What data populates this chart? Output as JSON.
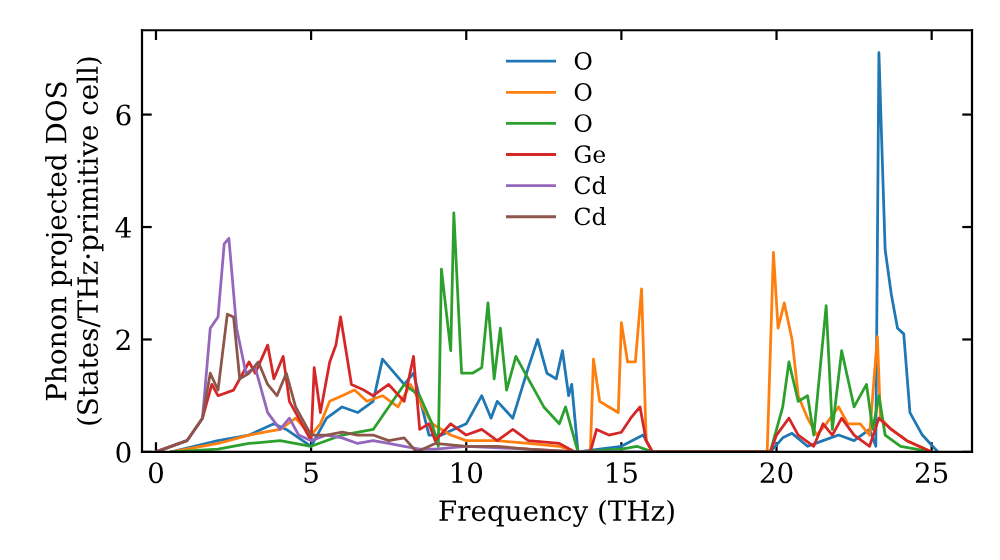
{
  "chart_data": {
    "type": "line",
    "xlabel": "Frequency (THz)",
    "ylabel": "Phonon projected DOS\n(States/THz·primitive cell)",
    "xlim": [
      -0.45,
      26.3
    ],
    "ylim": [
      0,
      7.5
    ],
    "xticks": [
      0,
      5,
      10,
      15,
      20,
      25
    ],
    "yticks": [
      0,
      2,
      4,
      6
    ],
    "grid": false,
    "legend": "top",
    "marker": "none",
    "line_style": "solid",
    "series": [
      {
        "name": "O",
        "color": "#1f77b4",
        "x": [
          0.5,
          2,
          3,
          3.8,
          4.2,
          5,
          5.5,
          6,
          6.5,
          7,
          7.3,
          8,
          8.3,
          8.8,
          9.2,
          10,
          10.5,
          10.8,
          11,
          11.5,
          12,
          12.3,
          12.6,
          12.9,
          13.1,
          13.3,
          13.4,
          13.6,
          15,
          15.7,
          16,
          19.8,
          20.2,
          20.5,
          21,
          21.5,
          22,
          22.5,
          23,
          23.2,
          23.3,
          23.5,
          23.7,
          23.9,
          24.1,
          24.3,
          24.7,
          25.2
        ],
        "values": [
          0,
          0.2,
          0.3,
          0.5,
          0.4,
          0.1,
          0.6,
          0.8,
          0.7,
          0.9,
          1.65,
          1.2,
          1.4,
          0.3,
          0.3,
          0.5,
          1.0,
          0.6,
          0.9,
          0.6,
          1.5,
          2.0,
          1.4,
          1.3,
          1.8,
          1.0,
          1.2,
          0,
          0.1,
          0.3,
          0,
          0,
          0.25,
          0.33,
          0.1,
          0.2,
          0.3,
          0.2,
          0.4,
          0.1,
          7.1,
          3.6,
          2.8,
          2.2,
          2.1,
          0.7,
          0.3,
          0
        ]
      },
      {
        "name": "O",
        "color": "#ff7f0e",
        "x": [
          0.5,
          2,
          3,
          3.5,
          4,
          4.5,
          5,
          5.3,
          5.6,
          6,
          6.4,
          6.8,
          7.3,
          7.8,
          8.2,
          8.5,
          8.9,
          9.5,
          10,
          11,
          12,
          13,
          13.5,
          14,
          14.1,
          14.3,
          14.6,
          14.9,
          15,
          15.2,
          15.45,
          15.65,
          15.8,
          16,
          19.7,
          19.9,
          20.05,
          20.25,
          20.5,
          20.7,
          21,
          21.3,
          21.6,
          22,
          22.3,
          22.7,
          23,
          23.25,
          23.35,
          23.7,
          24.2,
          25
        ],
        "values": [
          0,
          0.15,
          0.3,
          0.35,
          0.4,
          0.6,
          0.3,
          0.5,
          0.9,
          1.0,
          1.1,
          0.9,
          1.0,
          0.8,
          1.2,
          0.9,
          0.5,
          0.3,
          0.2,
          0.2,
          0.15,
          0.1,
          0,
          0,
          1.65,
          0.9,
          0.8,
          0.7,
          2.3,
          1.6,
          1.6,
          2.9,
          0.2,
          0,
          0,
          3.55,
          2.2,
          2.65,
          2.0,
          1.0,
          0.6,
          0.3,
          0.5,
          0.8,
          0.5,
          0.5,
          0.3,
          2.05,
          0.6,
          0.4,
          0.2,
          0
        ]
      },
      {
        "name": "O",
        "color": "#2ca02c",
        "x": [
          0.5,
          2,
          3,
          4,
          5,
          6,
          7,
          7.5,
          8,
          8.5,
          8.9,
          9.1,
          9.2,
          9.5,
          9.6,
          9.85,
          10.2,
          10.5,
          10.7,
          10.9,
          11.1,
          11.3,
          11.6,
          12,
          12.5,
          13,
          13.2,
          13.4,
          13.6,
          15,
          15.5,
          16,
          19.8,
          20.2,
          20.4,
          20.7,
          21,
          21.2,
          21.6,
          21.8,
          22.1,
          22.5,
          22.9,
          23.1,
          23.3,
          23.5,
          24,
          25
        ],
        "values": [
          0,
          0.05,
          0.15,
          0.2,
          0.1,
          0.3,
          0.4,
          0.8,
          1.2,
          1.0,
          0.5,
          0.1,
          3.25,
          1.8,
          4.25,
          1.4,
          1.4,
          1.5,
          2.65,
          1.3,
          2.2,
          1.1,
          1.7,
          1.3,
          0.8,
          0.5,
          0.8,
          0.4,
          0,
          0.05,
          0.1,
          0,
          0,
          0.8,
          1.6,
          0.9,
          1.0,
          0.3,
          2.6,
          0.4,
          1.8,
          0.8,
          1.2,
          0.4,
          1.0,
          0.3,
          0.1,
          0
        ]
      },
      {
        "name": "Ge",
        "color": "#d62728",
        "x": [
          0,
          1,
          1.5,
          1.8,
          2,
          2.5,
          3,
          3.2,
          3.6,
          3.8,
          4.1,
          4.3,
          4.6,
          5,
          5.1,
          5.3,
          5.6,
          5.8,
          5.95,
          6.3,
          6.7,
          7,
          7.5,
          8,
          8.3,
          8.5,
          8.8,
          9,
          9.5,
          10,
          10.5,
          11,
          11.5,
          12,
          13,
          13.5,
          14,
          14.2,
          14.6,
          15,
          15.3,
          15.6,
          15.8,
          16,
          19.8,
          20,
          20.4,
          20.7,
          21.2,
          21.5,
          21.8,
          22.1,
          22.5,
          23,
          23.3,
          23.7,
          24.2,
          25
        ],
        "values": [
          0,
          0.2,
          0.6,
          1.2,
          1.0,
          1.1,
          1.6,
          1.4,
          1.9,
          1.3,
          1.7,
          0.9,
          0.6,
          0.2,
          1.5,
          0.7,
          1.6,
          1.9,
          2.4,
          1.2,
          1.1,
          1.0,
          1.2,
          0.9,
          1.7,
          0.4,
          0.5,
          0.2,
          0.5,
          0.3,
          0.4,
          0.2,
          0.4,
          0.2,
          0.15,
          0,
          0,
          0.4,
          0.3,
          0.35,
          0.6,
          0.8,
          0.2,
          0,
          0,
          0.3,
          0.6,
          0.3,
          0.1,
          0.5,
          0.3,
          0.6,
          0.3,
          0.1,
          0.6,
          0.4,
          0.2,
          0
        ]
      },
      {
        "name": "Cd",
        "color": "#9467bd",
        "x": [
          0,
          1,
          1.5,
          1.75,
          2,
          2.2,
          2.35,
          2.6,
          2.9,
          3.2,
          3.6,
          4,
          4.3,
          4.6,
          5,
          5.5,
          6,
          6.5,
          7,
          7.5,
          8,
          8.5,
          9,
          10,
          12,
          13.5,
          16
        ],
        "values": [
          0,
          0.2,
          0.6,
          2.2,
          2.4,
          3.7,
          3.8,
          2.2,
          1.4,
          1.5,
          0.7,
          0.4,
          0.6,
          0.3,
          0.2,
          0.3,
          0.25,
          0.15,
          0.2,
          0.15,
          0.1,
          0.05,
          0.05,
          0.1,
          0.05,
          0,
          0
        ]
      },
      {
        "name": "Cd",
        "color": "#8c564b",
        "x": [
          0,
          1,
          1.5,
          1.75,
          2,
          2.3,
          2.5,
          2.7,
          3,
          3.3,
          3.6,
          3.9,
          4.2,
          4.5,
          5,
          5.5,
          6,
          6.5,
          7,
          7.5,
          8,
          8.4,
          9,
          10,
          11,
          12,
          13.5
        ],
        "values": [
          0,
          0.2,
          0.6,
          1.4,
          1.1,
          2.45,
          2.4,
          1.3,
          1.4,
          1.6,
          1.2,
          1.0,
          1.4,
          0.8,
          0.3,
          0.3,
          0.35,
          0.3,
          0.3,
          0.2,
          0.25,
          0,
          0.15,
          0.1,
          0.1,
          0.05,
          0
        ]
      }
    ]
  }
}
